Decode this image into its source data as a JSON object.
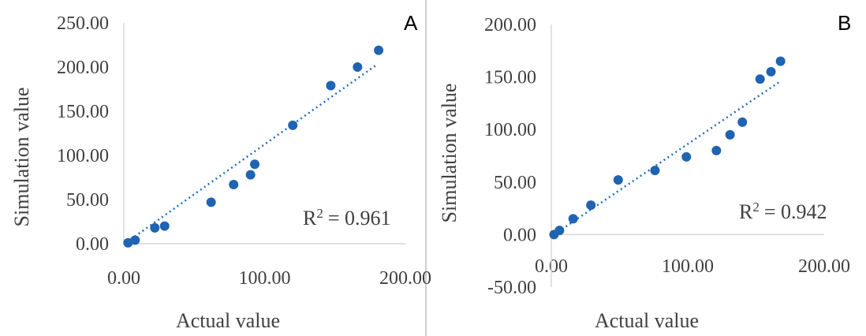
{
  "chart_data": [
    {
      "type": "scatter",
      "panel_label": "A",
      "xlabel": "Actual value",
      "ylabel": "Simulation value",
      "xlim": [
        0,
        200
      ],
      "ylim": [
        0,
        250
      ],
      "x_ticks": [
        "0.00",
        "100.00",
        "200.00"
      ],
      "y_ticks": [
        "0.00",
        "50.00",
        "100.00",
        "150.00",
        "200.00",
        "250.00"
      ],
      "r2_label": "R",
      "r2_value": "= 0.961",
      "trendline": {
        "x_start": 5,
        "y_start": 5,
        "x_end": 180,
        "y_end": 203
      },
      "points": [
        {
          "x": 3,
          "y": 1
        },
        {
          "x": 8,
          "y": 4
        },
        {
          "x": 22,
          "y": 18
        },
        {
          "x": 29,
          "y": 20
        },
        {
          "x": 62,
          "y": 47
        },
        {
          "x": 78,
          "y": 67
        },
        {
          "x": 90,
          "y": 78
        },
        {
          "x": 93,
          "y": 90
        },
        {
          "x": 120,
          "y": 134
        },
        {
          "x": 147,
          "y": 179
        },
        {
          "x": 166,
          "y": 200
        },
        {
          "x": 181,
          "y": 219
        }
      ]
    },
    {
      "type": "scatter",
      "panel_label": "B",
      "xlabel": "Actual value",
      "ylabel": "Simulation value",
      "xlim": [
        0,
        200
      ],
      "ylim": [
        -50,
        200
      ],
      "x_ticks": [
        "0.00",
        "100.00",
        "200.00"
      ],
      "y_ticks": [
        "-50.00",
        "0.00",
        "50.00",
        "100.00",
        "150.00",
        "200.00"
      ],
      "r2_label": "R",
      "r2_value": "= 0.942",
      "trendline": {
        "x_start": 2,
        "y_start": 0,
        "x_end": 168,
        "y_end": 146
      },
      "points": [
        {
          "x": 2,
          "y": 0
        },
        {
          "x": 6,
          "y": 4
        },
        {
          "x": 16,
          "y": 15
        },
        {
          "x": 29,
          "y": 28
        },
        {
          "x": 49,
          "y": 52
        },
        {
          "x": 76,
          "y": 61
        },
        {
          "x": 99,
          "y": 74
        },
        {
          "x": 121,
          "y": 80
        },
        {
          "x": 131,
          "y": 95
        },
        {
          "x": 140,
          "y": 107
        },
        {
          "x": 153,
          "y": 148
        },
        {
          "x": 161,
          "y": 155
        },
        {
          "x": 168,
          "y": 165
        }
      ]
    }
  ]
}
